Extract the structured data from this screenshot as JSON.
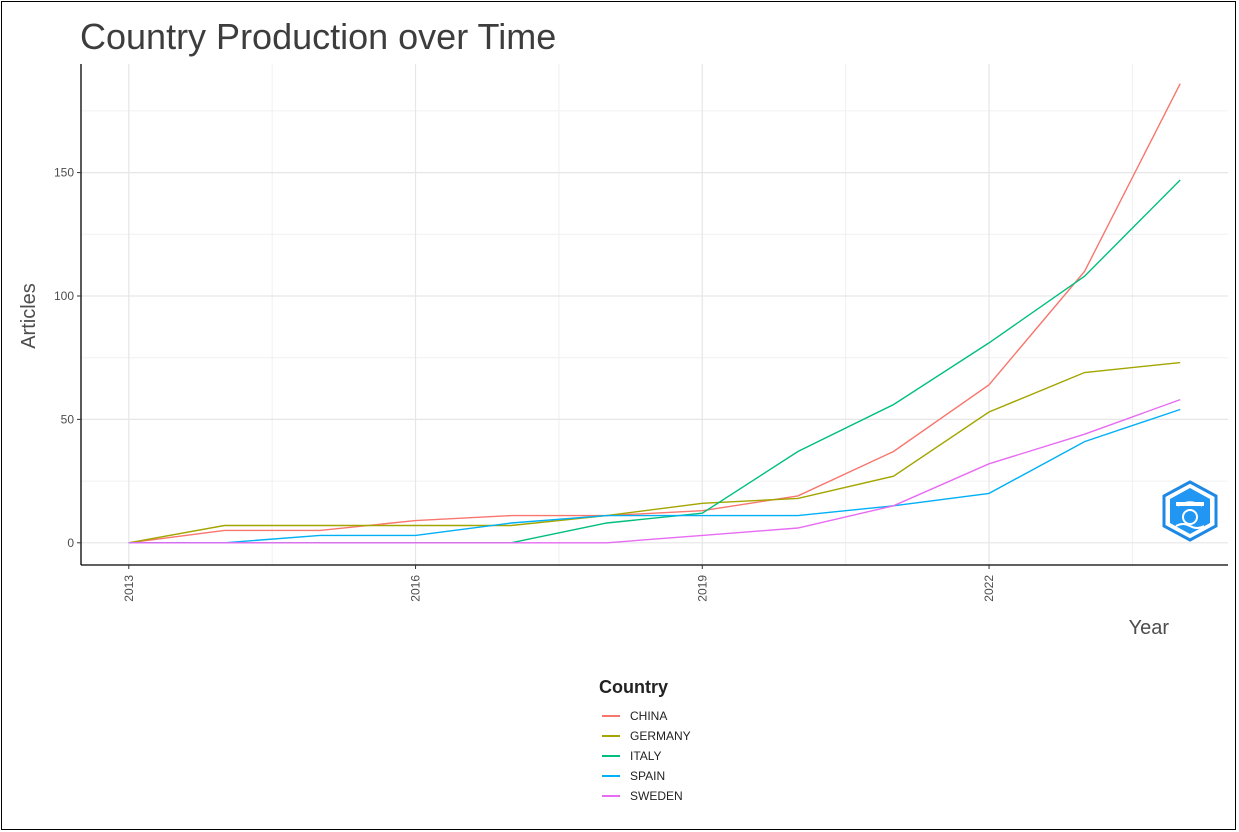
{
  "chart_data": {
    "type": "line",
    "title": "Country Production over Time",
    "xlabel": "Year",
    "ylabel": "Articles",
    "x": [
      2013,
      2014,
      2015,
      2016,
      2017,
      2018,
      2019,
      2020,
      2021,
      2022,
      2023,
      2024
    ],
    "xticks": [
      "2013",
      "2016",
      "2019",
      "2022"
    ],
    "yticks": [
      "0",
      "50",
      "100",
      "150"
    ],
    "xlim": [
      2012.5,
      2024.5
    ],
    "ylim": [
      -9,
      194
    ],
    "grid": true,
    "legend_position": "bottom",
    "legend_title": "Country",
    "series": [
      {
        "name": "CHINA",
        "color": "#F8766D",
        "values": [
          0,
          5,
          5,
          9,
          11,
          11,
          13,
          19,
          37,
          64,
          110,
          186
        ]
      },
      {
        "name": "GERMANY",
        "color": "#A3A500",
        "values": [
          0,
          7,
          7,
          7,
          7,
          11,
          16,
          18,
          27,
          53,
          69,
          73
        ]
      },
      {
        "name": "ITALY",
        "color": "#00BF7D",
        "values": [
          0,
          0,
          0,
          0,
          0,
          8,
          12,
          37,
          56,
          81,
          108,
          147
        ]
      },
      {
        "name": "SPAIN",
        "color": "#00B0F6",
        "values": [
          0,
          0,
          3,
          3,
          8,
          11,
          11,
          11,
          15,
          20,
          41,
          54
        ]
      },
      {
        "name": "SWEDEN",
        "color": "#E76BF3",
        "values": [
          0,
          0,
          0,
          0,
          0,
          0,
          3,
          6,
          15,
          32,
          44,
          58
        ]
      }
    ]
  }
}
